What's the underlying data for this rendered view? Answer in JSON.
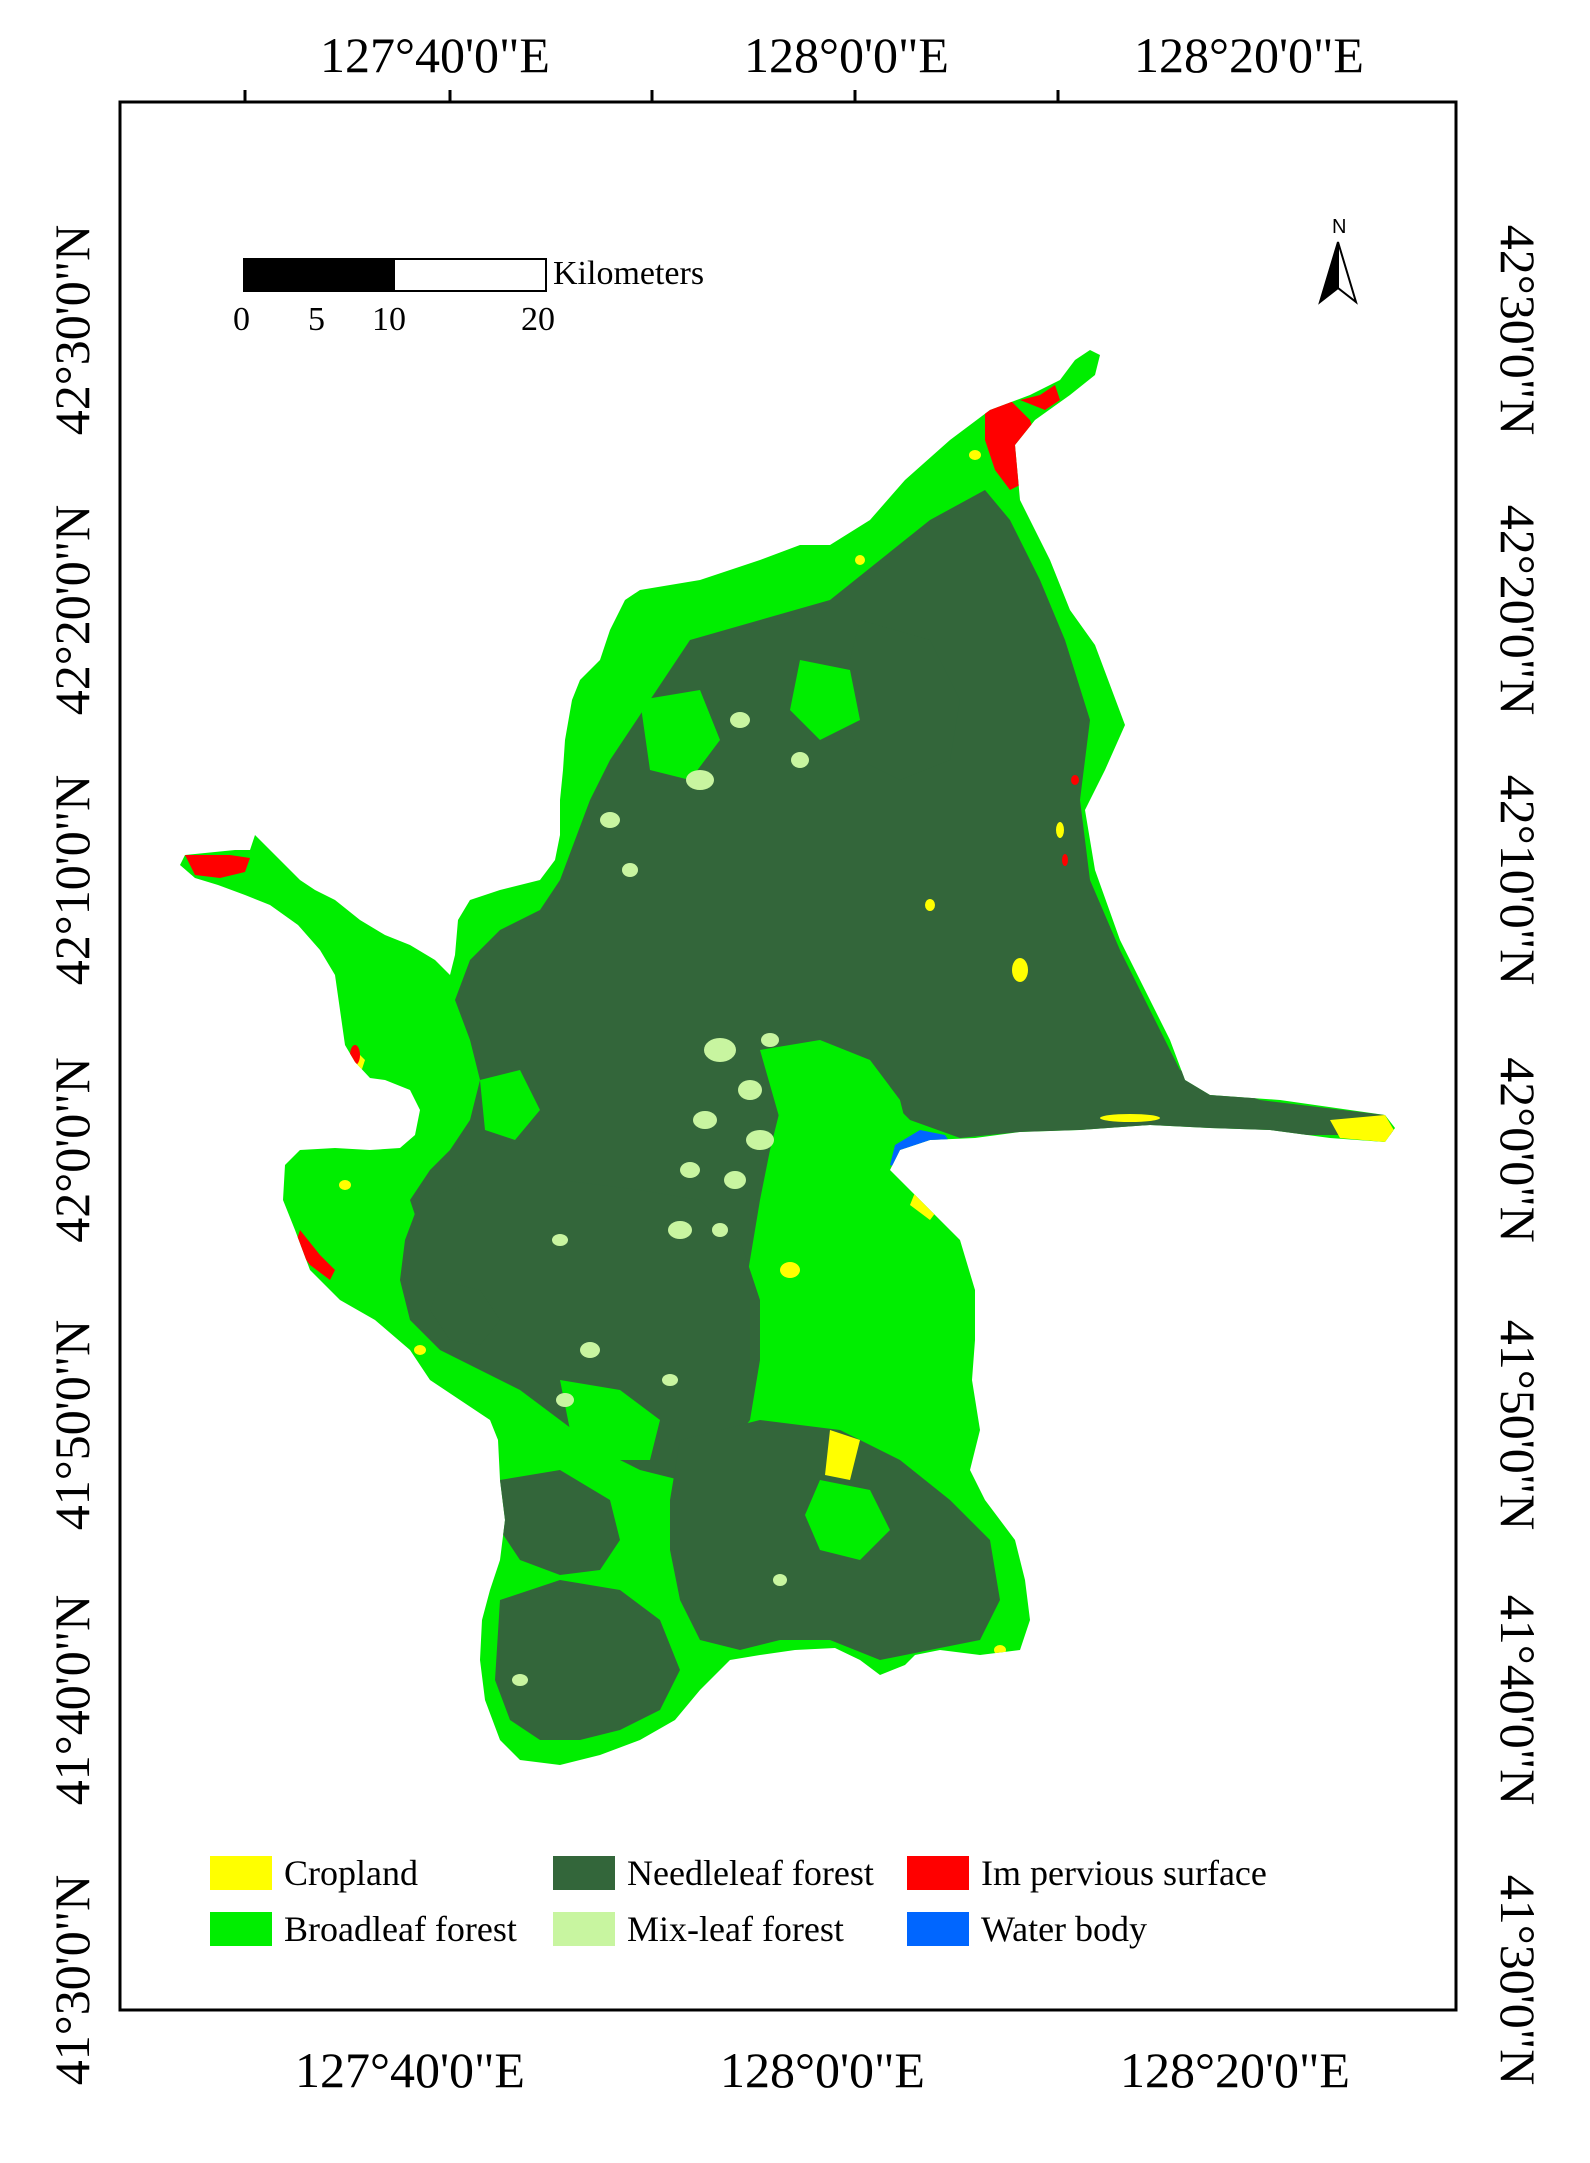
{
  "colors": {
    "cropland": "#ffff00",
    "broadleaf": "#00ee00",
    "needleleaf": "#33663a",
    "mixleaf": "#c8f5a0",
    "impervious": "#ff0000",
    "water": "#0066ff"
  },
  "graticule": {
    "top": [
      "127°40'0\"E",
      "128°0'0\"E",
      "128°20'0\"E"
    ],
    "bottom": [
      "127°40'0\"E",
      "128°0'0\"E",
      "128°20'0\"E"
    ],
    "left": [
      "42°30'0\"N",
      "42°20'0\"N",
      "42°10'0\"N",
      "42°0'0\"N",
      "41°50'0\"N",
      "41°40'0\"N",
      "41°30'0\"N"
    ],
    "right": [
      "42°30'0\"N",
      "42°20'0\"N",
      "42°10'0\"N",
      "42°0'0\"N",
      "41°50'0\"N",
      "41°40'0\"N",
      "41°30'0\"N"
    ]
  },
  "scale_bar": {
    "unit": "Kilometers",
    "ticks": [
      "0",
      "5",
      "10",
      "20"
    ]
  },
  "north_arrow": {
    "label": "N",
    "icon": "north-arrow-icon"
  },
  "legend": [
    {
      "key": "cropland",
      "label": "Cropland"
    },
    {
      "key": "needleleaf",
      "label": "Needleleaf forest"
    },
    {
      "key": "impervious",
      "label": "Im pervious surface"
    },
    {
      "key": "broadleaf",
      "label": "Broadleaf forest"
    },
    {
      "key": "mixleaf",
      "label": "Mix-leaf forest"
    },
    {
      "key": "water",
      "label": "Water body"
    }
  ]
}
